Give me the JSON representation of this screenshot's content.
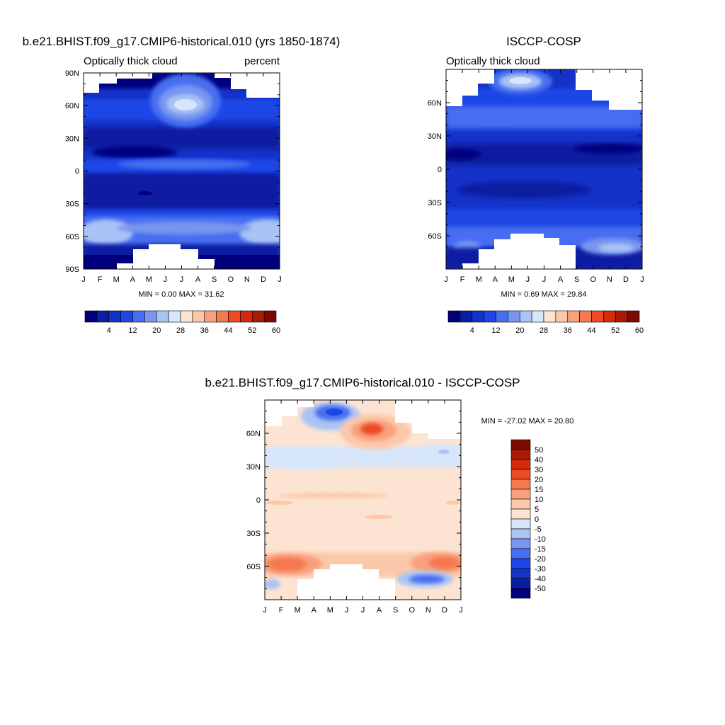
{
  "chart_data": [
    {
      "type": "heatmap",
      "title": "b.e21.BHIST.f09_g17.CMIP6-historical.010 (yrs 1850-1874)",
      "left_label": "Optically thick cloud",
      "right_label": "percent",
      "x_tick_labels": [
        "J",
        "F",
        "M",
        "A",
        "M",
        "J",
        "J",
        "A",
        "S",
        "O",
        "N",
        "D",
        "J"
      ],
      "y_tick_labels": [
        "90N",
        "60N",
        "30N",
        "0",
        "30S",
        "60S",
        "90S"
      ],
      "ylim": [
        -90,
        90
      ],
      "stats": "MIN =   0.00 MAX =  31.62",
      "colorbar_labels": [
        "4",
        "12",
        "20",
        "28",
        "36",
        "44",
        "52",
        "60"
      ],
      "colorbar_colors": [
        "#00007f",
        "#0a1ea0",
        "#1432c8",
        "#1e46e6",
        "#466ef0",
        "#7896f0",
        "#aac3f5",
        "#d7e6fa",
        "#fde4d2",
        "#fcc8aa",
        "#f8a07d",
        "#f5784f",
        "#eb4a23",
        "#d22a0c",
        "#aa1b05",
        "#7d0a00"
      ],
      "regions": [
        {
          "lat": 80,
          "month": 8,
          "value": 22
        },
        {
          "lat": 62,
          "month": 7,
          "value": 30
        },
        {
          "lat": 20,
          "month": 3,
          "value": 4
        },
        {
          "lat": -55,
          "month": 1,
          "value": 26
        },
        {
          "lat": -55,
          "month": 11.5,
          "value": 26
        }
      ]
    },
    {
      "type": "heatmap",
      "title": "ISCCP-COSP",
      "left_label": "Optically thick cloud",
      "right_label": "",
      "x_tick_labels": [
        "J",
        "F",
        "M",
        "A",
        "M",
        "J",
        "J",
        "A",
        "S",
        "O",
        "N",
        "D",
        "J"
      ],
      "y_tick_labels": [
        "60N",
        "30N",
        "0",
        "30S",
        "60S"
      ],
      "ylim": [
        -90,
        90
      ],
      "stats": "MIN =   0.69 MAX =  29.84",
      "colorbar_labels": [
        "4",
        "12",
        "20",
        "28",
        "36",
        "44",
        "52",
        "60"
      ],
      "regions": [
        {
          "lat": 85,
          "month": 6.5,
          "value": 28
        },
        {
          "lat": 18,
          "month": 4,
          "value": 4
        },
        {
          "lat": -20,
          "month": 6,
          "value": 4
        },
        {
          "lat": -68,
          "month": 11,
          "value": 26
        }
      ]
    },
    {
      "type": "heatmap",
      "title": "b.e21.BHIST.f09_g17.CMIP6-historical.010 - ISCCP-COSP",
      "x_tick_labels": [
        "J",
        "F",
        "M",
        "A",
        "M",
        "J",
        "J",
        "A",
        "S",
        "O",
        "N",
        "D",
        "J"
      ],
      "y_tick_labels": [
        "60N",
        "30N",
        "0",
        "30S",
        "60S"
      ],
      "ylim": [
        -90,
        90
      ],
      "stats": "MIN = -27.02 MAX =  20.80",
      "colorbar_labels": [
        "50",
        "40",
        "30",
        "20",
        "15",
        "10",
        "5",
        "0",
        "-5",
        "-10",
        "-15",
        "-20",
        "-30",
        "-40",
        "-50"
      ],
      "colorbar_colors": [
        "#7d0a00",
        "#aa1b05",
        "#d22a0c",
        "#eb4a23",
        "#f5784f",
        "#f8a07d",
        "#fcc8aa",
        "#fde4d2",
        "#d7e6fa",
        "#aac3f5",
        "#7896f0",
        "#466ef0",
        "#1e46e6",
        "#1432c8",
        "#0a1ea0",
        "#00007f"
      ],
      "regions": [
        {
          "lat": 84,
          "month": 4.5,
          "value": -27
        },
        {
          "lat": 70,
          "month": 7,
          "value": 20
        },
        {
          "lat": -55,
          "month": 1.5,
          "value": 18
        },
        {
          "lat": -55,
          "month": 12,
          "value": 18
        },
        {
          "lat": -70,
          "month": 10.5,
          "value": -22
        }
      ]
    }
  ]
}
